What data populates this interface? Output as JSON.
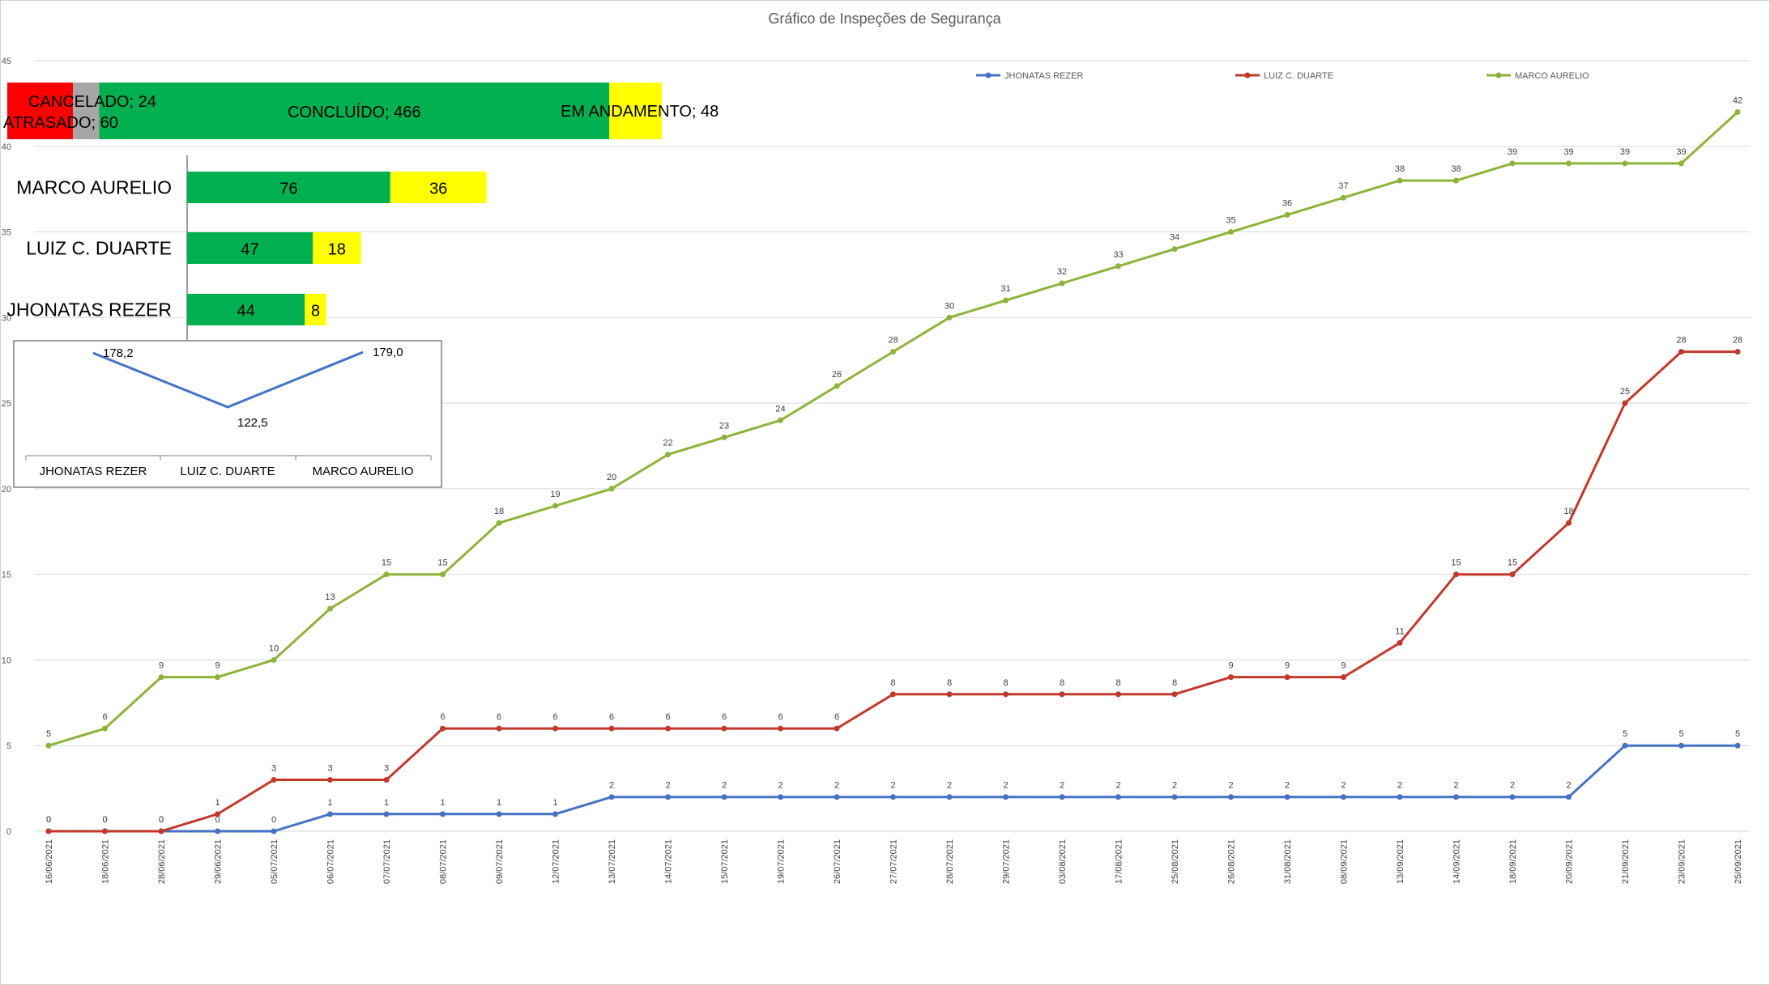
{
  "chart_data": [
    {
      "type": "line",
      "title": "Gráfico de Inspeções de Segurança",
      "x": [
        "16/06/2021",
        "18/06/2021",
        "28/06/2021",
        "29/06/2021",
        "05/07/2021",
        "06/07/2021",
        "07/07/2021",
        "08/07/2021",
        "09/07/2021",
        "12/07/2021",
        "13/07/2021",
        "14/07/2021",
        "15/07/2021",
        "19/07/2021",
        "26/07/2021",
        "27/07/2021",
        "28/07/2021",
        "29/07/2021",
        "03/08/2021",
        "17/08/2021",
        "25/08/2021",
        "26/08/2021",
        "31/08/2021",
        "08/09/2021",
        "13/09/2021",
        "14/09/2021",
        "18/09/2021",
        "20/09/2021",
        "21/09/2021",
        "23/09/2021",
        "25/09/2021"
      ],
      "yticks": [
        "0",
        "5",
        "10",
        "15",
        "20",
        "25",
        "30",
        "35",
        "40",
        "45"
      ],
      "ylim": [
        0,
        45
      ],
      "grid": true,
      "legend_position": "top-right",
      "series": [
        {
          "name": "JHONATAS REZER",
          "color": "#4472c4",
          "values": [
            0,
            0,
            0,
            0,
            0,
            1,
            1,
            1,
            1,
            1,
            2,
            2,
            2,
            2,
            2,
            2,
            2,
            2,
            2,
            2,
            2,
            2,
            2,
            2,
            2,
            2,
            2,
            2,
            5,
            5,
            5
          ]
        },
        {
          "name": "LUIZ C. DUARTE",
          "color": "#c0392b",
          "values": [
            0,
            0,
            0,
            1,
            3,
            3,
            3,
            6,
            6,
            6,
            6,
            6,
            6,
            6,
            6,
            8,
            8,
            8,
            8,
            8,
            8,
            9,
            9,
            9,
            11,
            15,
            15,
            18,
            25,
            28,
            28
          ]
        },
        {
          "name": "MARCO AURELIO",
          "color": "#8db33a",
          "values": [
            5,
            6,
            9,
            9,
            10,
            13,
            15,
            15,
            18,
            19,
            20,
            22,
            23,
            24,
            26,
            28,
            30,
            31,
            32,
            33,
            34,
            35,
            36,
            37,
            38,
            38,
            39,
            39,
            39,
            39,
            42
          ]
        }
      ]
    },
    {
      "type": "bar",
      "stacked": true,
      "segments": [
        {
          "label": "ATRASADO; 60",
          "value": 60,
          "color": "#ff0000"
        },
        {
          "label": "CANCELADO; 24",
          "value": 24,
          "color": "#a6a6a6"
        },
        {
          "label": "CONCLUÍDO; 466",
          "value": 466,
          "color": "#00b050"
        },
        {
          "label": "EM ANDAMENTO; 48",
          "value": 48,
          "color": "#ffff00"
        }
      ]
    },
    {
      "type": "bar",
      "stacked": true,
      "orientation": "horizontal",
      "categories": [
        "MARCO AURELIO",
        "LUIZ C. DUARTE",
        "JHONATAS REZER"
      ],
      "series": [
        {
          "color": "#00b050",
          "values": [
            76,
            47,
            44
          ],
          "labels": [
            "76",
            "47",
            "44"
          ]
        },
        {
          "color": "#ffff00",
          "values": [
            36,
            18,
            8
          ],
          "labels": [
            "36",
            "18",
            "8"
          ]
        }
      ]
    },
    {
      "type": "line",
      "categories": [
        "JHONATAS REZER",
        "LUIZ C. DUARTE",
        "MARCO AURELIO"
      ],
      "values": [
        178.2,
        122.5,
        179.0
      ],
      "labels": [
        "178,2",
        "122,5",
        "179,0"
      ],
      "color": "#4472c4"
    }
  ]
}
